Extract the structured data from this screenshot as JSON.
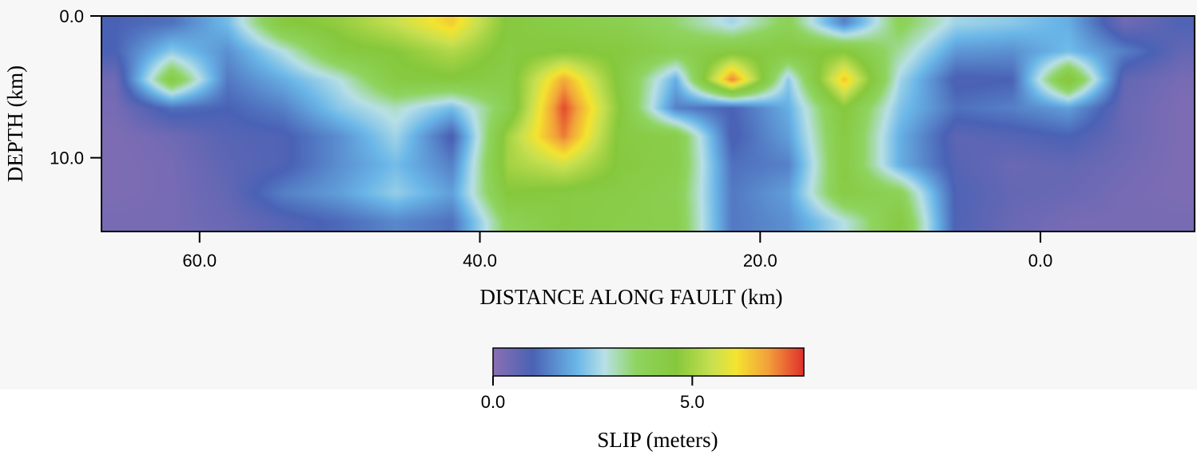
{
  "chart_data": {
    "type": "heatmap",
    "title": "",
    "xlabel": "DISTANCE ALONG FAULT (km)",
    "ylabel": "DEPTH (km)",
    "xlim": [
      67.0,
      -11.0
    ],
    "ylim": [
      0.0,
      15.2
    ],
    "x_ticks": [
      {
        "value": 60.0,
        "label": "60.0"
      },
      {
        "value": 40.0,
        "label": "40.0"
      },
      {
        "value": 20.0,
        "label": "20.0"
      },
      {
        "value": 0.0,
        "label": "0.0"
      }
    ],
    "y_ticks": [
      {
        "value": 0.0,
        "label": "0.0"
      },
      {
        "value": 10.0,
        "label": "10.0"
      }
    ],
    "colorbar": {
      "label": "SLIP (meters)",
      "min": 0.0,
      "max": 7.8,
      "ticks": [
        {
          "value": 0.0,
          "label": "0.0"
        },
        {
          "value": 5.0,
          "label": "5.0"
        }
      ],
      "stops": [
        {
          "value": 0.0,
          "color": "#8a6fb3"
        },
        {
          "value": 1.0,
          "color": "#4a62b5"
        },
        {
          "value": 2.1,
          "color": "#6ab6e8"
        },
        {
          "value": 2.8,
          "color": "#b8e0e6"
        },
        {
          "value": 3.6,
          "color": "#8fd45f"
        },
        {
          "value": 4.6,
          "color": "#86c83c"
        },
        {
          "value": 5.5,
          "color": "#c8e050"
        },
        {
          "value": 6.1,
          "color": "#f4e430"
        },
        {
          "value": 6.9,
          "color": "#f2a03a"
        },
        {
          "value": 7.8,
          "color": "#e0302c"
        }
      ]
    },
    "grid": false,
    "x": [
      66.0,
      62.0,
      58.0,
      54.0,
      50.0,
      46.0,
      42.0,
      38.0,
      34.0,
      30.0,
      26.0,
      22.0,
      18.0,
      14.0,
      10.0,
      6.0,
      2.0,
      -2.0,
      -6.0,
      -10.0
    ],
    "y": [
      0.5,
      2.5,
      4.5,
      6.5,
      8.5,
      10.5,
      12.5,
      14.5
    ],
    "z": [
      [
        1.0,
        1.2,
        2.2,
        4.5,
        4.8,
        5.5,
        6.4,
        4.5,
        4.2,
        4.0,
        3.5,
        2.6,
        3.8,
        1.4,
        3.8,
        2.6,
        2.4,
        2.0,
        0.4,
        0.9
      ],
      [
        1.0,
        2.4,
        1.6,
        2.8,
        4.4,
        4.6,
        5.2,
        4.4,
        4.6,
        4.5,
        4.0,
        4.4,
        4.4,
        4.6,
        3.2,
        1.7,
        1.6,
        2.2,
        1.4,
        0.6
      ],
      [
        0.4,
        4.3,
        1.3,
        2.0,
        2.8,
        4.4,
        4.5,
        4.2,
        6.8,
        4.4,
        2.0,
        7.2,
        2.4,
        6.5,
        2.6,
        0.9,
        1.0,
        4.8,
        0.6,
        0.3
      ],
      [
        0.3,
        1.2,
        1.0,
        1.4,
        2.4,
        3.0,
        2.2,
        4.0,
        7.6,
        4.6,
        1.4,
        1.0,
        2.0,
        4.6,
        2.3,
        1.2,
        1.4,
        1.8,
        0.5,
        0.2
      ],
      [
        0.2,
        0.4,
        0.8,
        0.9,
        1.6,
        2.6,
        0.9,
        5.0,
        7.2,
        4.4,
        4.2,
        0.9,
        1.8,
        4.4,
        2.0,
        0.7,
        0.8,
        1.0,
        0.5,
        0.2
      ],
      [
        0.2,
        0.3,
        0.7,
        0.9,
        1.6,
        2.2,
        1.4,
        5.0,
        5.6,
        4.5,
        4.2,
        1.2,
        1.4,
        4.4,
        2.0,
        0.8,
        0.5,
        0.6,
        0.4,
        0.2
      ],
      [
        0.2,
        0.3,
        0.6,
        1.4,
        1.8,
        2.5,
        1.8,
        4.6,
        4.4,
        4.3,
        4.0,
        1.3,
        1.8,
        4.3,
        3.8,
        0.9,
        0.6,
        0.5,
        0.3,
        0.2
      ],
      [
        0.3,
        0.3,
        0.5,
        0.8,
        1.1,
        1.5,
        1.2,
        3.8,
        4.4,
        4.2,
        4.1,
        1.3,
        1.6,
        2.8,
        4.4,
        0.9,
        0.5,
        0.3,
        0.3,
        0.3
      ]
    ]
  }
}
